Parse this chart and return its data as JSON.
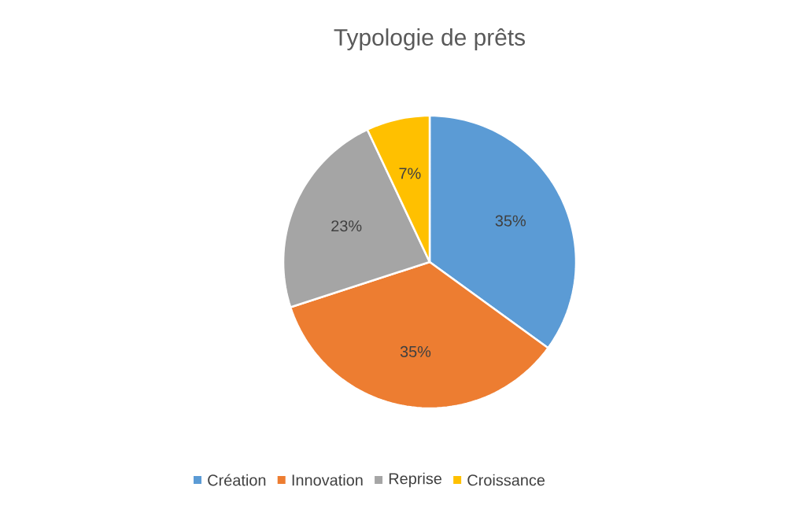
{
  "chart_data": {
    "type": "pie",
    "title": "Typologie de prêts",
    "categories": [
      "Création",
      "Innovation",
      "Reprise",
      "Croissance"
    ],
    "values": [
      35,
      35,
      23,
      7
    ],
    "colors": [
      "#5b9bd5",
      "#ed7d31",
      "#a5a5a5",
      "#ffc000"
    ],
    "value_labels": [
      "35%",
      "35%",
      "23%",
      "7%"
    ],
    "legend": "bottom"
  }
}
